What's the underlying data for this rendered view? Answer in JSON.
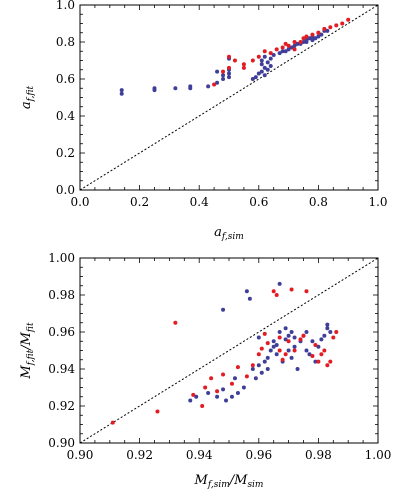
{
  "colors": {
    "blue": "#3f3f9a",
    "red": "#e31b23"
  },
  "chart_data": [
    {
      "type": "scatter",
      "xlim": [
        0.0,
        1.0
      ],
      "ylim": [
        0.0,
        1.0
      ],
      "xticks": [
        "0.0",
        "0.2",
        "0.4",
        "0.6",
        "0.8",
        "1.0"
      ],
      "yticks": [
        "0.0",
        "0.2",
        "0.4",
        "0.6",
        "0.8",
        "1.0"
      ],
      "xlabel": {
        "main": "a",
        "sub": "f,sim"
      },
      "ylabel": {
        "main": "a",
        "sub": "f,fit"
      },
      "diagonal": true,
      "series": [
        {
          "color": "blue",
          "points": [
            [
              0.14,
              0.54
            ],
            [
              0.14,
              0.52
            ],
            [
              0.25,
              0.55
            ],
            [
              0.25,
              0.54
            ],
            [
              0.32,
              0.55
            ],
            [
              0.37,
              0.55
            ],
            [
              0.37,
              0.56
            ],
            [
              0.43,
              0.56
            ],
            [
              0.46,
              0.58
            ],
            [
              0.46,
              0.64
            ],
            [
              0.48,
              0.6
            ],
            [
              0.48,
              0.62
            ],
            [
              0.5,
              0.61
            ],
            [
              0.5,
              0.63
            ],
            [
              0.5,
              0.65
            ],
            [
              0.5,
              0.71
            ],
            [
              0.58,
              0.6
            ],
            [
              0.59,
              0.61
            ],
            [
              0.6,
              0.63
            ],
            [
              0.61,
              0.64
            ],
            [
              0.61,
              0.68
            ],
            [
              0.61,
              0.7
            ],
            [
              0.62,
              0.62
            ],
            [
              0.62,
              0.66
            ],
            [
              0.62,
              0.72
            ],
            [
              0.63,
              0.65
            ],
            [
              0.63,
              0.69
            ],
            [
              0.64,
              0.67
            ],
            [
              0.64,
              0.71
            ],
            [
              0.65,
              0.73
            ],
            [
              0.67,
              0.74
            ],
            [
              0.68,
              0.75
            ],
            [
              0.69,
              0.75
            ],
            [
              0.7,
              0.76
            ],
            [
              0.71,
              0.77
            ],
            [
              0.72,
              0.78
            ],
            [
              0.73,
              0.79
            ],
            [
              0.74,
              0.79
            ],
            [
              0.75,
              0.8
            ],
            [
              0.76,
              0.8
            ],
            [
              0.76,
              0.81
            ],
            [
              0.77,
              0.82
            ],
            [
              0.78,
              0.81
            ],
            [
              0.78,
              0.83
            ],
            [
              0.79,
              0.82
            ],
            [
              0.8,
              0.83
            ],
            [
              0.8,
              0.85
            ],
            [
              0.81,
              0.84
            ],
            [
              0.82,
              0.86
            ],
            [
              0.82,
              0.87
            ],
            [
              0.83,
              0.86
            ]
          ]
        },
        {
          "color": "red",
          "points": [
            [
              0.45,
              0.57
            ],
            [
              0.48,
              0.64
            ],
            [
              0.5,
              0.66
            ],
            [
              0.5,
              0.72
            ],
            [
              0.52,
              0.7
            ],
            [
              0.55,
              0.66
            ],
            [
              0.55,
              0.68
            ],
            [
              0.58,
              0.7
            ],
            [
              0.6,
              0.72
            ],
            [
              0.62,
              0.75
            ],
            [
              0.64,
              0.74
            ],
            [
              0.66,
              0.76
            ],
            [
              0.68,
              0.77
            ],
            [
              0.7,
              0.78
            ],
            [
              0.72,
              0.8
            ],
            [
              0.74,
              0.8
            ],
            [
              0.75,
              0.82
            ],
            [
              0.76,
              0.83
            ],
            [
              0.78,
              0.84
            ],
            [
              0.8,
              0.85
            ],
            [
              0.82,
              0.87
            ],
            [
              0.84,
              0.88
            ],
            [
              0.86,
              0.89
            ],
            [
              0.88,
              0.9
            ],
            [
              0.9,
              0.92
            ],
            [
              0.72,
              0.76
            ],
            [
              0.69,
              0.79
            ]
          ]
        }
      ]
    },
    {
      "type": "scatter",
      "xlim": [
        0.9,
        1.0
      ],
      "ylim": [
        0.9,
        1.0
      ],
      "xticks": [
        "0.90",
        "0.92",
        "0.94",
        "0.96",
        "0.98",
        "1.00"
      ],
      "yticks": [
        "0.90",
        "0.92",
        "0.94",
        "0.96",
        "0.98",
        "1.00"
      ],
      "xlabel": {
        "main": "M",
        "sub": "f,sim",
        "main2": "/M",
        "sub2": "sim"
      },
      "ylabel": {
        "main": "M",
        "sub": "f,fit",
        "main2": "/M",
        "sub2": "fit"
      },
      "diagonal": true,
      "series": [
        {
          "color": "blue",
          "points": [
            [
              0.937,
              0.923
            ],
            [
              0.939,
              0.925
            ],
            [
              0.943,
              0.927
            ],
            [
              0.946,
              0.925
            ],
            [
              0.948,
              0.929
            ],
            [
              0.949,
              0.923
            ],
            [
              0.951,
              0.925
            ],
            [
              0.952,
              0.935
            ],
            [
              0.953,
              0.927
            ],
            [
              0.955,
              0.93
            ],
            [
              0.956,
              0.982
            ],
            [
              0.957,
              0.978
            ],
            [
              0.958,
              0.94
            ],
            [
              0.959,
              0.935
            ],
            [
              0.96,
              0.942
            ],
            [
              0.961,
              0.938
            ],
            [
              0.962,
              0.944
            ],
            [
              0.963,
              0.946
            ],
            [
              0.964,
              0.95
            ],
            [
              0.965,
              0.952
            ],
            [
              0.965,
              0.955
            ],
            [
              0.966,
              0.948
            ],
            [
              0.966,
              0.953
            ],
            [
              0.967,
              0.96
            ],
            [
              0.967,
              0.986
            ],
            [
              0.968,
              0.944
            ],
            [
              0.969,
              0.956
            ],
            [
              0.969,
              0.962
            ],
            [
              0.97,
              0.95
            ],
            [
              0.97,
              0.958
            ],
            [
              0.971,
              0.946
            ],
            [
              0.971,
              0.96
            ],
            [
              0.972,
              0.952
            ],
            [
              0.972,
              0.957
            ],
            [
              0.973,
              0.94
            ],
            [
              0.974,
              0.955
            ],
            [
              0.975,
              0.958
            ],
            [
              0.976,
              0.95
            ],
            [
              0.976,
              0.96
            ],
            [
              0.977,
              0.948
            ],
            [
              0.978,
              0.955
            ],
            [
              0.979,
              0.944
            ],
            [
              0.98,
              0.952
            ],
            [
              0.981,
              0.956
            ],
            [
              0.982,
              0.958
            ],
            [
              0.983,
              0.962
            ],
            [
              0.983,
              0.964
            ],
            [
              0.984,
              0.96
            ],
            [
              0.948,
              0.972
            ],
            [
              0.963,
              0.94
            ],
            [
              0.96,
              0.957
            ]
          ]
        },
        {
          "color": "red",
          "points": [
            [
              0.911,
              0.911
            ],
            [
              0.926,
              0.917
            ],
            [
              0.932,
              0.965
            ],
            [
              0.938,
              0.926
            ],
            [
              0.941,
              0.92
            ],
            [
              0.942,
              0.93
            ],
            [
              0.944,
              0.935
            ],
            [
              0.946,
              0.928
            ],
            [
              0.948,
              0.937
            ],
            [
              0.951,
              0.932
            ],
            [
              0.953,
              0.941
            ],
            [
              0.956,
              0.936
            ],
            [
              0.958,
              0.942
            ],
            [
              0.96,
              0.948
            ],
            [
              0.961,
              0.951
            ],
            [
              0.963,
              0.954
            ],
            [
              0.965,
              0.982
            ],
            [
              0.966,
              0.98
            ],
            [
              0.967,
              0.95
            ],
            [
              0.968,
              0.945
            ],
            [
              0.969,
              0.948
            ],
            [
              0.97,
              0.955
            ],
            [
              0.971,
              0.983
            ],
            [
              0.972,
              0.95
            ],
            [
              0.974,
              0.956
            ],
            [
              0.975,
              0.958
            ],
            [
              0.976,
              0.982
            ],
            [
              0.978,
              0.947
            ],
            [
              0.979,
              0.953
            ],
            [
              0.98,
              0.944
            ],
            [
              0.981,
              0.948
            ],
            [
              0.982,
              0.95
            ],
            [
              0.983,
              0.942
            ],
            [
              0.984,
              0.944
            ],
            [
              0.985,
              0.957
            ],
            [
              0.986,
              0.96
            ],
            [
              0.962,
              0.959
            ],
            [
              0.967,
              0.957
            ]
          ]
        }
      ]
    }
  ]
}
